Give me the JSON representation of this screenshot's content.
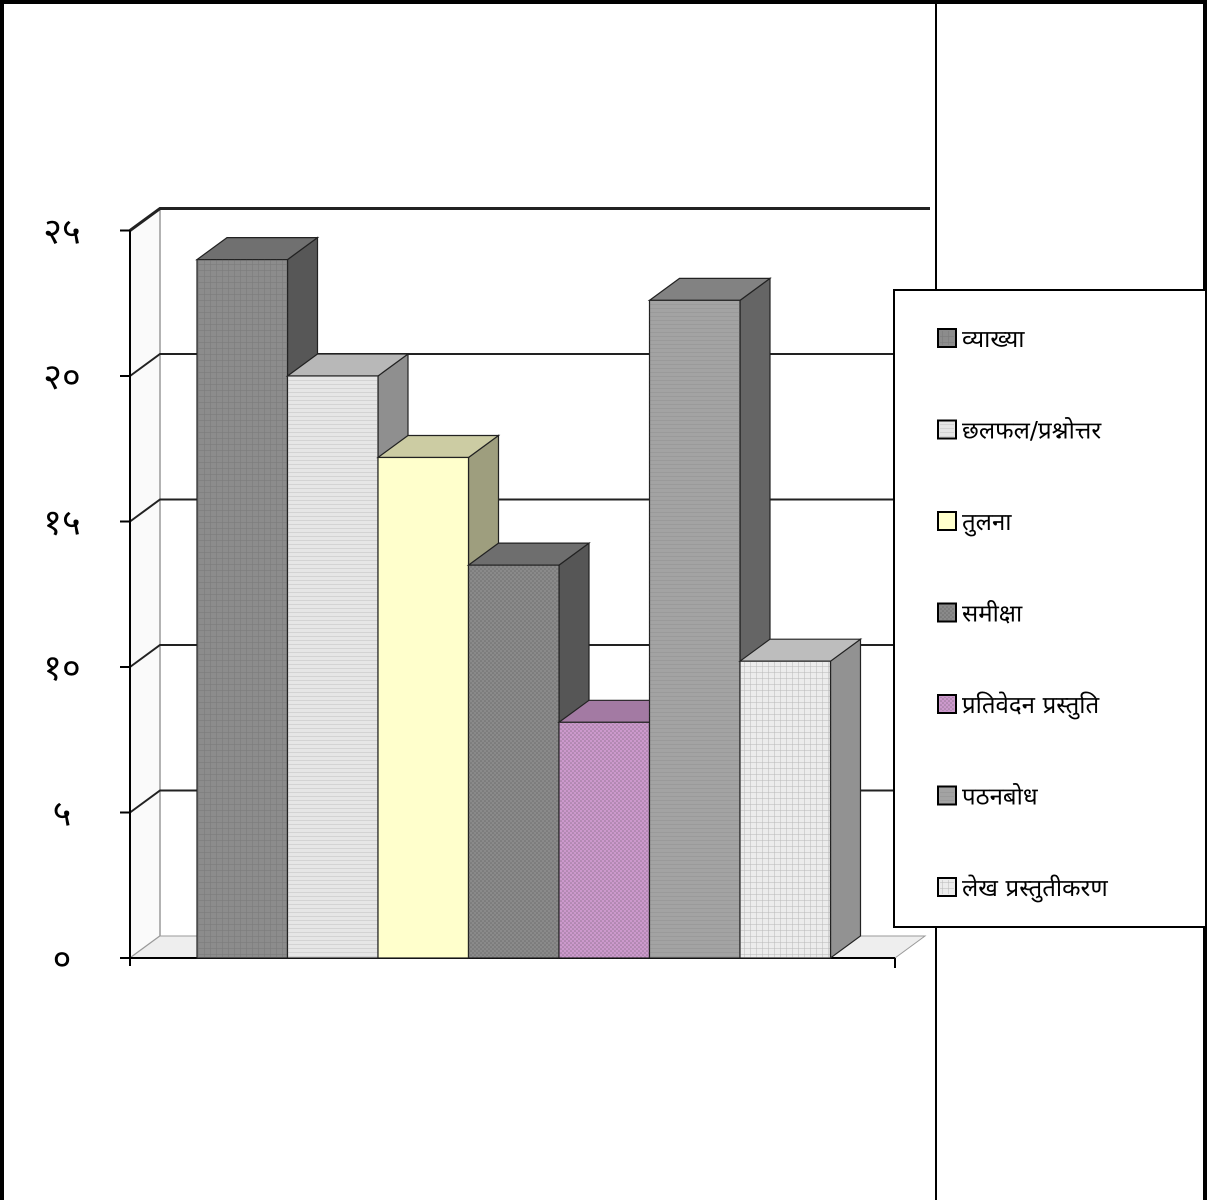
{
  "chart_data": {
    "type": "bar",
    "title": "",
    "xlabel": "",
    "ylabel": "",
    "ylim": [
      0,
      25
    ],
    "yticks": [
      0,
      5,
      10,
      15,
      20,
      25
    ],
    "ytick_labels": [
      "०",
      "५",
      "१०",
      "१५",
      "२०",
      "२५"
    ],
    "grid": true,
    "three_d": true,
    "legend_position": "right",
    "series": [
      {
        "name": "व्याख्या",
        "value": 24,
        "color": "#8c8c8c",
        "pattern": "grid"
      },
      {
        "name": "छलफल/प्रश्नोत्तर",
        "value": 20,
        "color": "#e6e6e6",
        "pattern": "hstripe"
      },
      {
        "name": "तुलना",
        "value": 17.2,
        "color": "#ffffcc",
        "pattern": "none"
      },
      {
        "name": "समीक्षा",
        "value": 13.5,
        "color": "#8a8a8a",
        "pattern": "dots"
      },
      {
        "name": "प्रतिवेदन प्रस्तुति",
        "value": 8.1,
        "color": "#cc99cc",
        "pattern": "dots"
      },
      {
        "name": "पठनबोध",
        "value": 22.6,
        "color": "#a3a3a3",
        "pattern": "hstripe"
      },
      {
        "name": "लेख प्रस्तुतीकरण",
        "value": 10.2,
        "color": "#ececec",
        "pattern": "grid"
      }
    ]
  }
}
